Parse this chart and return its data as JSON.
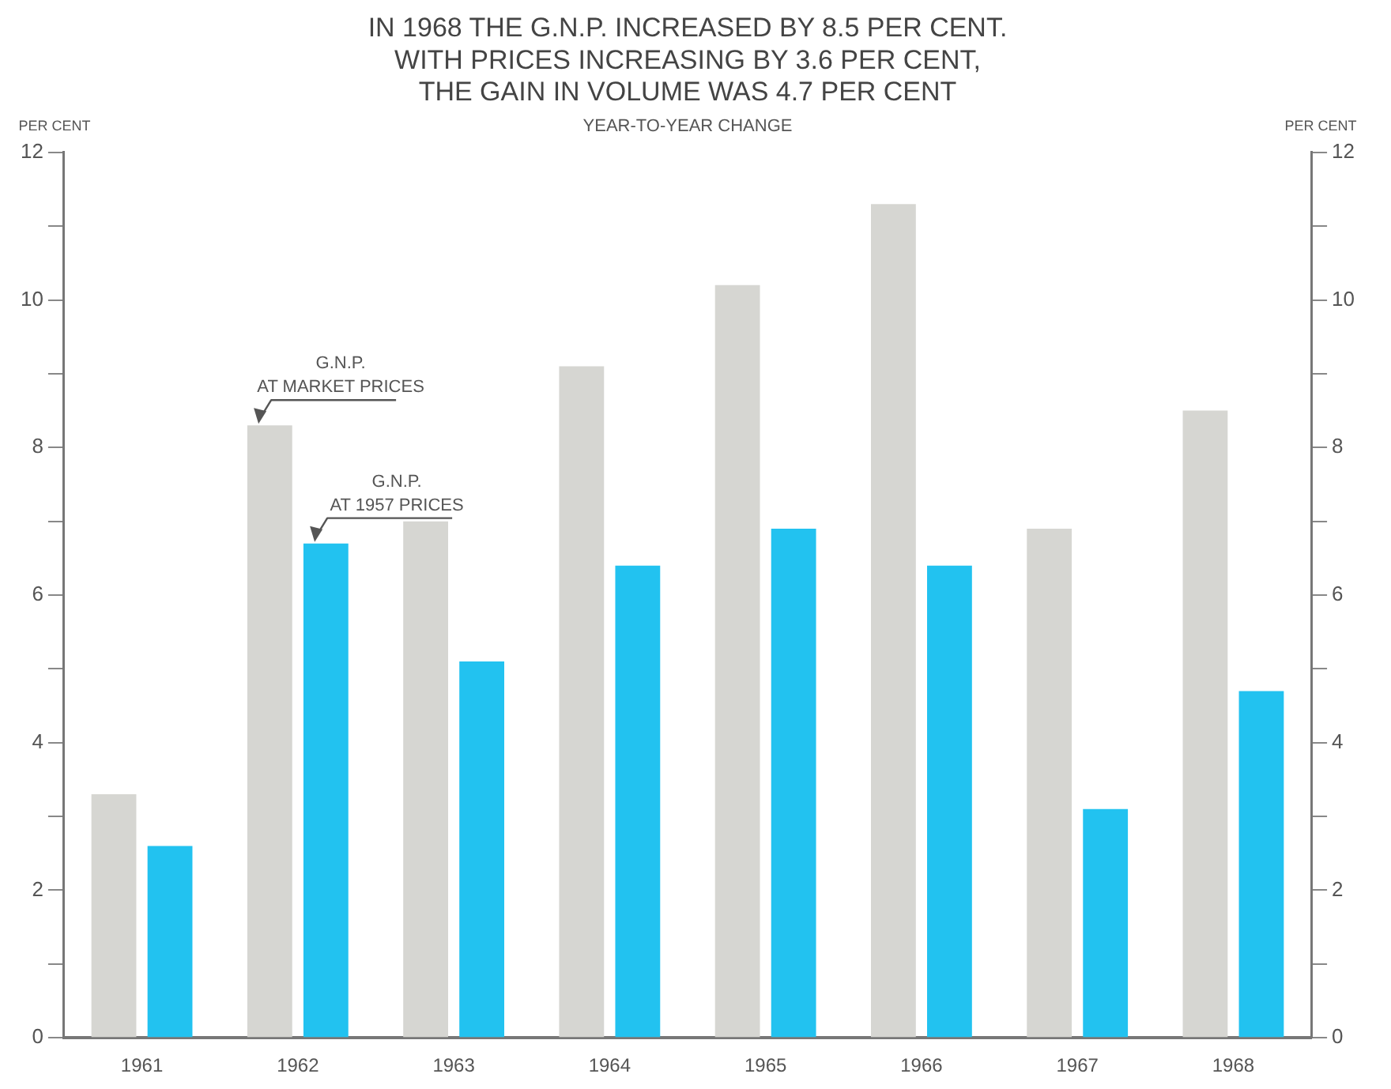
{
  "chart_data": {
    "type": "bar",
    "title": [
      "IN 1968 THE G.N.P. INCREASED BY 8.5 PER CENT.",
      "WITH PRICES INCREASING BY 3.6 PER CENT,",
      "THE GAIN IN VOLUME WAS 4.7 PER CENT"
    ],
    "subtitle": "YEAR-TO-YEAR CHANGE",
    "ylabel": "PER CENT",
    "y2label": "PER CENT",
    "categories": [
      "1961",
      "1962",
      "1963",
      "1964",
      "1965",
      "1966",
      "1967",
      "1968"
    ],
    "series": [
      {
        "color": "#d6d6d2",
        "values": [
          3.3,
          8.3,
          7.0,
          9.1,
          10.2,
          11.3,
          6.9,
          8.5
        ]
      },
      {
        "color": "#22c2f0",
        "values": [
          2.6,
          6.7,
          5.1,
          6.4,
          6.9,
          6.4,
          3.1,
          4.7
        ]
      }
    ],
    "ylim": [
      0,
      12
    ],
    "yticks": [
      0,
      {
        "value": 1,
        "label": null
      },
      2,
      {
        "value": 3,
        "label": null
      },
      4,
      {
        "value": 5,
        "label": null
      },
      6,
      {
        "value": 7,
        "label": null
      },
      8,
      {
        "value": 9,
        "label": null
      },
      10,
      {
        "value": 11,
        "label": null
      },
      12
    ],
    "y2lim": [
      0,
      12
    ],
    "y2ticks": [
      0,
      {
        "value": 1,
        "label": null
      },
      2,
      {
        "value": 3,
        "label": null
      },
      4,
      {
        "value": 5,
        "label": null
      },
      6,
      {
        "value": 7,
        "label": null
      },
      8,
      {
        "value": 9,
        "label": null
      },
      10,
      {
        "value": 11,
        "label": null
      },
      12
    ],
    "annotations": [
      {
        "text": "G.N.P.\nAT MARKET PRICES",
        "x": "1962",
        "y": 8.3
      },
      {
        "text": "G.N.P.\nAT 1957 PRICES",
        "x": "1962",
        "y": 6.7
      }
    ],
    "grid": false,
    "legend": false
  }
}
